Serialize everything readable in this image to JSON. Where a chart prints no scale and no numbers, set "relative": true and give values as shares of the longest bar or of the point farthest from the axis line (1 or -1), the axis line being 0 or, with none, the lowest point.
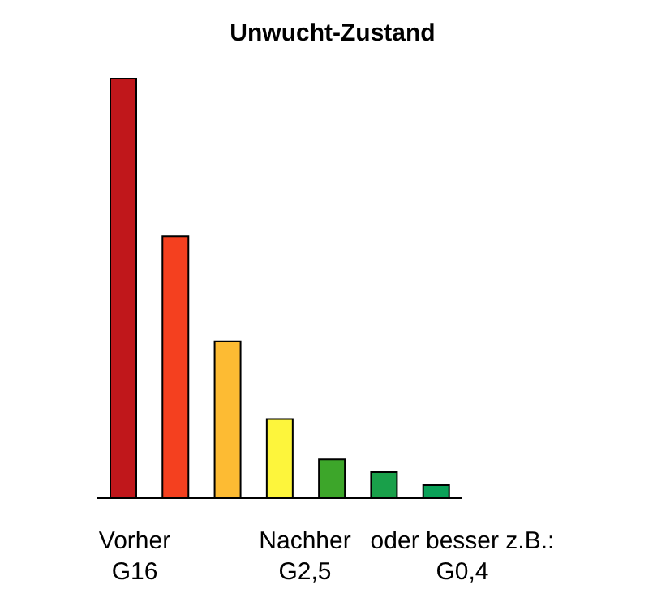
{
  "chart_data": {
    "type": "bar",
    "title": "Unwucht-Zustand",
    "relative": true,
    "categories": [
      null,
      null,
      null,
      null,
      null,
      null,
      null
    ],
    "values": [
      1,
      0.623,
      0.373,
      0.188,
      0.092,
      0.062,
      0.031
    ],
    "colors": [
      "#c0171b",
      "#f4401f",
      "#fdbb33",
      "#fdf53c",
      "#3da62a",
      "#19a04a",
      "#0aa158"
    ],
    "annotations": [
      "Vorher\nG16",
      "Nachher\nG2,5",
      "oder besser z.B.:\nG0,4"
    ]
  }
}
